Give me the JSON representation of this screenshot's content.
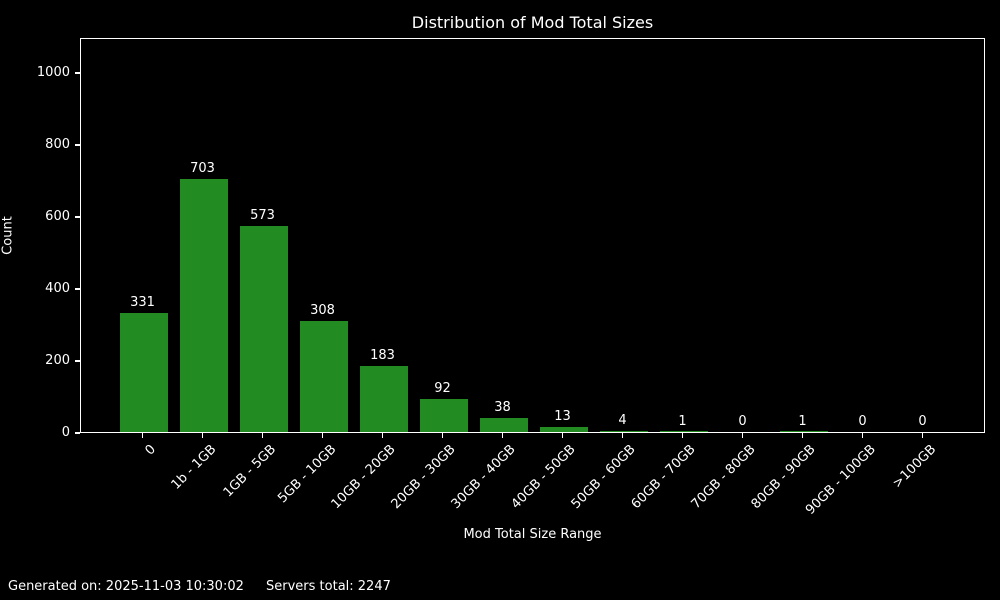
{
  "footer": {
    "generated": "Generated on: 2025-11-03 10:30:02",
    "servers_total": "Servers total: 2247"
  },
  "chart_data": {
    "type": "bar",
    "title": "Distribution of Mod Total Sizes",
    "xlabel": "Mod Total Size Range",
    "ylabel": "Count",
    "categories": [
      "0",
      "1b - 1GB",
      "1GB - 5GB",
      "5GB - 10GB",
      "10GB - 20GB",
      "20GB - 30GB",
      "30GB - 40GB",
      "40GB - 50GB",
      "50GB - 60GB",
      "60GB - 70GB",
      "70GB - 80GB",
      "80GB - 90GB",
      "90GB - 100GB",
      ">100GB"
    ],
    "values": [
      331,
      703,
      573,
      308,
      183,
      92,
      38,
      13,
      4,
      1,
      0,
      1,
      0,
      0
    ],
    "yticks": [
      0,
      200,
      400,
      600,
      800,
      1000
    ],
    "ylim": [
      0,
      1097
    ],
    "bar_labels": true,
    "grid": false,
    "legend": null,
    "bar_color": "#228B22",
    "background_color": "#000000",
    "text_color": "#ffffff",
    "x_tick_rotation_deg": 45
  }
}
